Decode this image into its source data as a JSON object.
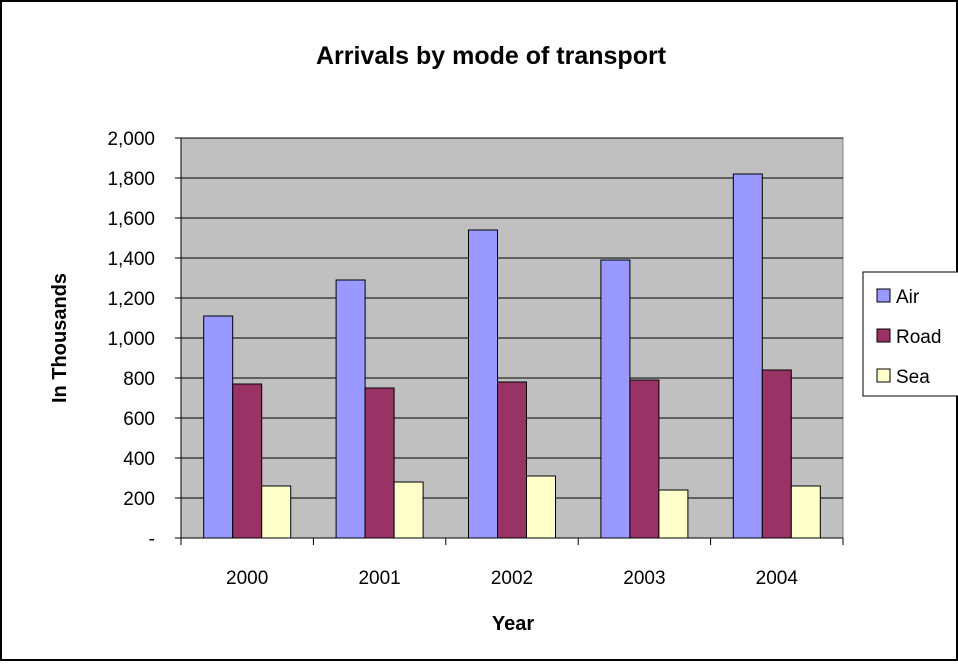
{
  "chart_data": {
    "type": "bar",
    "title": "Arrivals by mode of transport",
    "xlabel": "Year",
    "ylabel": "In Thousands",
    "categories": [
      "2000",
      "2001",
      "2002",
      "2003",
      "2004"
    ],
    "series": [
      {
        "name": "Air",
        "values": [
          1110,
          1290,
          1540,
          1390,
          1820
        ]
      },
      {
        "name": "Road",
        "values": [
          770,
          750,
          780,
          790,
          840
        ]
      },
      {
        "name": "Sea",
        "values": [
          260,
          280,
          310,
          240,
          260
        ]
      }
    ],
    "ylim": [
      0,
      2000
    ],
    "yticks": [
      0,
      200,
      400,
      600,
      800,
      1000,
      1200,
      1400,
      1600,
      1800,
      2000
    ],
    "ytick_labels": [
      "-",
      "200",
      "400",
      "600",
      "800",
      "1,000",
      "1,200",
      "1,400",
      "1,600",
      "1,800",
      "2,000"
    ],
    "grid": true,
    "legend_position": "right"
  },
  "colors": {
    "Air": "#9999ff",
    "Road": "#993366",
    "Sea": "#ffffcc",
    "plot_background": "#c0c0c0",
    "outline": "#000000"
  }
}
